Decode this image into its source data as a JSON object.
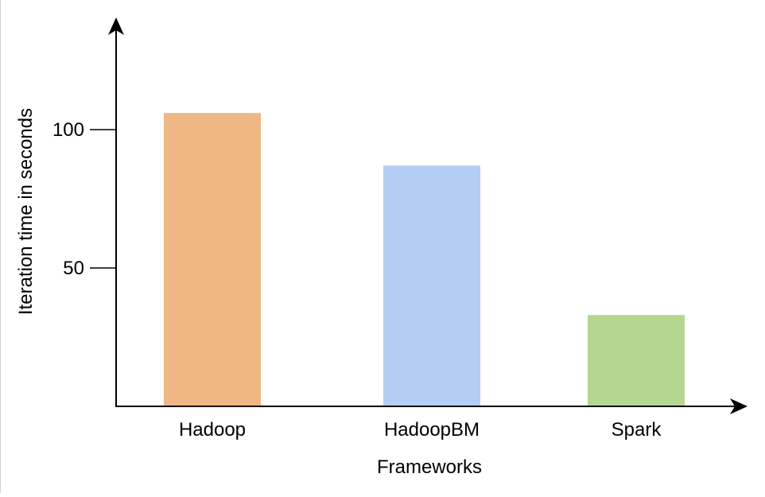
{
  "chart_data": {
    "type": "bar",
    "categories": [
      "Hadoop",
      "HadoopBM",
      "Spark"
    ],
    "values": [
      106,
      87,
      33
    ],
    "colors": [
      "#efb783",
      "#b5cdf2",
      "#b3d78f"
    ],
    "title": "",
    "xlabel": "Frameworks",
    "ylabel": "Iteration time in seconds",
    "yticks": [
      50,
      100
    ],
    "ylim": [
      0,
      140
    ],
    "grid": false,
    "legend": "none"
  }
}
